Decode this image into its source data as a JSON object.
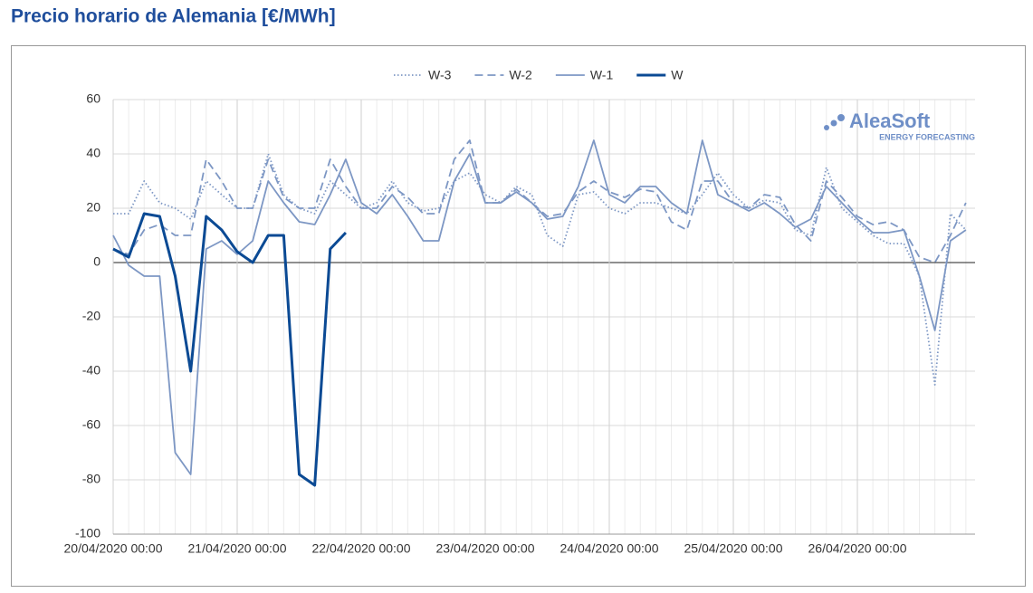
{
  "chart_data": {
    "type": "line",
    "title": "Precio horario de Alemania [€/MWh]",
    "logo": {
      "name": "AleaSoft",
      "tagline": "ENERGY FORECASTING"
    },
    "categories": [
      "20/04/2020 00:00",
      null,
      null,
      null,
      null,
      null,
      null,
      null,
      "21/04/2020 00:00",
      null,
      null,
      null,
      null,
      null,
      null,
      null,
      "22/04/2020 00:00",
      null,
      null,
      null,
      null,
      null,
      null,
      null,
      "23/04/2020 00:00",
      null,
      null,
      null,
      null,
      null,
      null,
      null,
      "24/04/2020 00:00",
      null,
      null,
      null,
      null,
      null,
      null,
      null,
      "25/04/2020 00:00",
      null,
      null,
      null,
      null,
      null,
      null,
      null,
      "26/04/2020 00:00",
      null,
      null,
      null,
      null,
      null,
      null,
      null
    ],
    "ylim": [
      -100,
      60
    ],
    "yticks": [
      -100,
      -80,
      -60,
      -40,
      -20,
      0,
      20,
      40,
      60
    ],
    "grid": true,
    "legend": "top",
    "series": [
      {
        "name": "W-3",
        "color": "#7d97c4",
        "style": "dotted",
        "values": [
          18,
          18,
          30,
          22,
          20,
          16,
          30,
          25,
          20,
          20,
          40,
          25,
          20,
          18,
          30,
          25,
          20,
          22,
          30,
          22,
          19,
          20,
          30,
          33,
          25,
          22,
          28,
          25,
          10,
          6,
          25,
          26,
          20,
          18,
          22,
          22,
          20,
          18,
          25,
          33,
          25,
          20,
          23,
          22,
          12,
          10,
          35,
          20,
          15,
          10,
          7,
          7,
          -5,
          -45,
          18,
          12
        ]
      },
      {
        "name": "W-2",
        "color": "#7d97c4",
        "style": "dashed",
        "values": [
          5,
          3,
          12,
          14,
          10,
          10,
          38,
          30,
          20,
          20,
          38,
          24,
          20,
          20,
          38,
          28,
          20,
          20,
          28,
          24,
          18,
          18,
          38,
          45,
          22,
          22,
          27,
          22,
          17,
          18,
          26,
          30,
          26,
          24,
          27,
          26,
          15,
          12,
          30,
          30,
          22,
          20,
          25,
          24,
          14,
          8,
          30,
          24,
          17,
          14,
          15,
          12,
          2,
          0,
          10,
          22
        ]
      },
      {
        "name": "W-1",
        "color": "#7d97c4",
        "style": "solid",
        "values": [
          10,
          -1,
          -5,
          -5,
          -70,
          -78,
          5,
          8,
          3,
          8,
          30,
          22,
          15,
          14,
          25,
          38,
          22,
          18,
          25,
          17,
          8,
          8,
          30,
          40,
          22,
          22,
          26,
          22,
          16,
          17,
          28,
          45,
          25,
          22,
          28,
          28,
          22,
          18,
          45,
          25,
          22,
          19,
          22,
          18,
          13,
          16,
          28,
          22,
          16,
          11,
          11,
          12,
          -5,
          -25,
          8,
          12
        ]
      },
      {
        "name": "W",
        "color": "#0b4a94",
        "style": "bold",
        "values": [
          5,
          2,
          18,
          17,
          -5,
          -40,
          17,
          12,
          4,
          0,
          10,
          10,
          -78,
          -82,
          5,
          11,
          null,
          null,
          null,
          null,
          null,
          null,
          null,
          null,
          null,
          null,
          null,
          null,
          null,
          null,
          null,
          null,
          null,
          null,
          null,
          null,
          null,
          null,
          null,
          null,
          null,
          null,
          null,
          null,
          null,
          null,
          null,
          null,
          null,
          null,
          null,
          null,
          null,
          null,
          null,
          null
        ]
      }
    ]
  }
}
